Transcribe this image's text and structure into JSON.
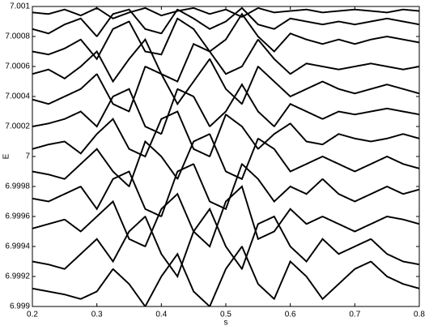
{
  "chart_data": {
    "type": "line",
    "x_label": "s",
    "y_label": "E",
    "color": "#000000",
    "x": [
      0.2,
      0.225,
      0.25,
      0.275,
      0.3,
      0.325,
      0.35,
      0.375,
      0.4,
      0.425,
      0.45,
      0.475,
      0.5,
      0.525,
      0.55,
      0.575,
      0.6,
      0.625,
      0.65,
      0.675,
      0.7,
      0.725,
      0.75,
      0.775,
      0.8
    ],
    "series": [
      {
        "values": [
          6.99912,
          6.9991,
          6.99908,
          6.99905,
          6.9991,
          6.99925,
          6.99915,
          6.999,
          6.9992,
          6.99935,
          6.9991,
          6.999,
          6.99925,
          6.9994,
          6.99915,
          6.99905,
          6.9993,
          6.9992,
          6.99905,
          6.99915,
          6.99925,
          6.9993,
          6.9992,
          6.99915,
          6.99912
        ]
      },
      {
        "values": [
          6.9993,
          6.99928,
          6.99925,
          6.99935,
          6.99945,
          6.9993,
          6.9995,
          6.9996,
          6.99935,
          6.9992,
          6.9995,
          6.99965,
          6.9994,
          6.99925,
          6.99955,
          6.9996,
          6.9994,
          6.9993,
          6.99945,
          6.99935,
          6.9994,
          6.99945,
          6.99935,
          6.9993,
          6.99928
        ]
      },
      {
        "values": [
          6.99952,
          6.99955,
          6.99958,
          6.9995,
          6.9996,
          6.9997,
          6.99945,
          6.9994,
          6.99965,
          6.99975,
          6.9995,
          6.9994,
          6.9997,
          6.9998,
          6.99945,
          6.9995,
          6.99965,
          6.99955,
          6.9996,
          6.99955,
          6.9995,
          6.99955,
          6.9996,
          6.99958,
          6.99955
        ]
      },
      {
        "values": [
          6.99972,
          6.9997,
          6.99975,
          6.9998,
          6.99965,
          6.99985,
          6.9999,
          6.99965,
          6.9996,
          6.9999,
          6.99995,
          6.9997,
          6.99965,
          6.99995,
          6.99985,
          6.9997,
          6.9998,
          6.99975,
          6.99985,
          6.99975,
          6.9997,
          6.99975,
          6.9998,
          6.99975,
          6.99978
        ]
      },
      {
        "values": [
          6.9999,
          6.99988,
          6.99985,
          6.99995,
          7.00005,
          6.9999,
          6.9998,
          7.0001,
          7.0,
          6.99985,
          7.0001,
          7.00015,
          6.9999,
          6.99985,
          7.00012,
          7.00005,
          6.9999,
          6.99995,
          7.0,
          6.99995,
          6.9999,
          6.99995,
          7.0,
          6.99995,
          6.99992
        ]
      },
      {
        "values": [
          7.00005,
          7.00008,
          7.0001,
          7.00002,
          7.00015,
          7.00025,
          7.00005,
          7.0,
          7.00025,
          7.0003,
          7.00005,
          7.0,
          7.00028,
          7.0002,
          7.00005,
          7.00015,
          7.00022,
          7.0001,
          7.00008,
          7.00015,
          7.00012,
          7.0001,
          7.00012,
          7.00015,
          7.00012
        ]
      },
      {
        "values": [
          7.0002,
          7.00022,
          7.00025,
          7.0003,
          7.0002,
          7.0004,
          7.00045,
          7.0002,
          7.00015,
          7.00045,
          7.0004,
          7.0002,
          7.0003,
          7.00048,
          7.0003,
          7.0002,
          7.00035,
          7.0003,
          7.00025,
          7.0003,
          7.00028,
          7.0003,
          7.00032,
          7.0003,
          7.00028
        ]
      },
      {
        "values": [
          7.00038,
          7.00035,
          7.0004,
          7.00045,
          7.00055,
          7.00035,
          7.0003,
          7.0006,
          7.00055,
          7.00035,
          7.0005,
          7.00065,
          7.00045,
          7.00035,
          7.0006,
          7.0005,
          7.0004,
          7.00045,
          7.0005,
          7.00045,
          7.00042,
          7.00045,
          7.00048,
          7.00045,
          7.00042
        ]
      },
      {
        "values": [
          7.00055,
          7.00058,
          7.00052,
          7.0006,
          7.0007,
          7.0005,
          7.00065,
          7.00078,
          7.00055,
          7.0005,
          7.00075,
          7.0007,
          7.00055,
          7.0006,
          7.00078,
          7.00065,
          7.00055,
          7.00062,
          7.0006,
          7.00058,
          7.0006,
          7.00062,
          7.0006,
          7.00058,
          7.0006
        ]
      },
      {
        "values": [
          7.0007,
          7.00068,
          7.00072,
          7.00078,
          7.00065,
          7.00085,
          7.0009,
          7.0007,
          7.00068,
          7.00092,
          7.00085,
          7.0007,
          7.00078,
          7.00095,
          7.0008,
          7.0007,
          7.00082,
          7.00078,
          7.00075,
          7.00078,
          7.00075,
          7.00078,
          7.0008,
          7.00078,
          7.00076
        ]
      },
      {
        "values": [
          7.00085,
          7.00082,
          7.00088,
          7.00092,
          7.0008,
          7.00095,
          7.00098,
          7.00085,
          7.00082,
          7.00098,
          7.00092,
          7.00085,
          7.0009,
          7.00099,
          7.00088,
          7.00085,
          7.00092,
          7.0009,
          7.00088,
          7.0009,
          7.00088,
          7.0009,
          7.00092,
          7.0009,
          7.00088
        ]
      },
      {
        "values": [
          7.00096,
          7.00095,
          7.00098,
          7.00094,
          7.00099,
          7.00092,
          7.00096,
          7.00099,
          7.00094,
          7.00097,
          7.00099,
          7.00095,
          7.00098,
          7.00093,
          7.00099,
          7.00096,
          7.00097,
          7.00098,
          7.00096,
          7.00097,
          7.00098,
          7.00097,
          7.00096,
          7.00098,
          7.00097
        ]
      }
    ],
    "xlim": [
      0.2,
      0.8
    ],
    "xticks": [
      0.2,
      0.3,
      0.4,
      0.5,
      0.6,
      0.7,
      0.8
    ],
    "ylim": [
      6.999,
      7.001
    ],
    "yticks": [
      6.999,
      6.9992,
      6.9994,
      6.9996,
      6.9998,
      7,
      7.0002,
      7.0004,
      7.0006,
      7.0008,
      7.001
    ]
  }
}
